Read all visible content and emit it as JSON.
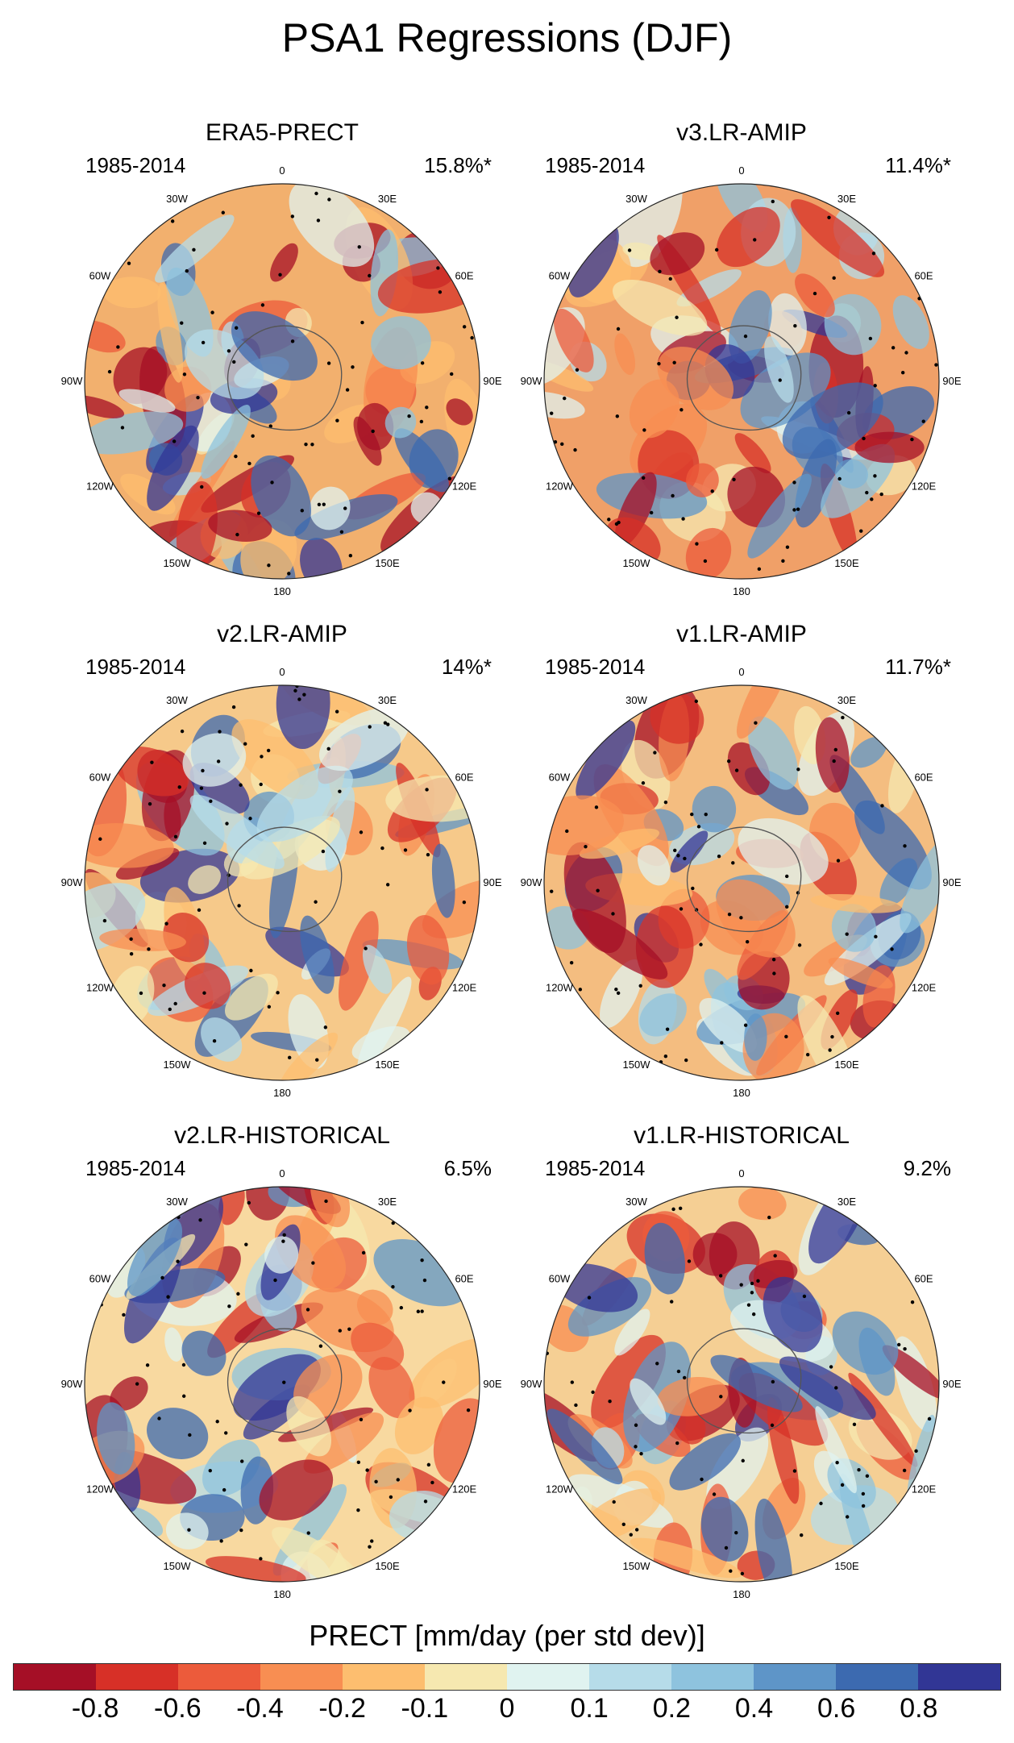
{
  "title": "PSA1 Regressions (DJF)",
  "panels": [
    {
      "title": "ERA5-PRECT",
      "years": "1985-2014",
      "percent": "15.8%*",
      "tint": "#f2b06e",
      "icons": [
        "polar-map-icon"
      ]
    },
    {
      "title": "v3.LR-AMIP",
      "years": "1985-2014",
      "percent": "11.4%*",
      "tint": "#f0a068",
      "icons": [
        "polar-map-icon"
      ]
    },
    {
      "title": "v2.LR-AMIP",
      "years": "1985-2014",
      "percent": "14%*",
      "tint": "#f6c98a",
      "icons": [
        "polar-map-icon"
      ]
    },
    {
      "title": "v1.LR-AMIP",
      "years": "1985-2014",
      "percent": "11.7%*",
      "tint": "#f4bd80",
      "icons": [
        "polar-map-icon"
      ]
    },
    {
      "title": "v2.LR-HISTORICAL",
      "years": "1985-2014",
      "percent": "6.5%",
      "tint": "#f8d9a0",
      "icons": [
        "polar-map-icon"
      ]
    },
    {
      "title": "v1.LR-HISTORICAL",
      "years": "1985-2014",
      "percent": "9.2%",
      "tint": "#f5cf94",
      "icons": [
        "polar-map-icon"
      ]
    }
  ],
  "longitude_labels": [
    "0",
    "30E",
    "60E",
    "90E",
    "120E",
    "150E",
    "180",
    "150W",
    "120W",
    "90W",
    "60W",
    "30W"
  ],
  "colorbar": {
    "title": "PRECT [mm/day (per std dev)]",
    "colors": [
      "#a50f26",
      "#d73027",
      "#ec5b3b",
      "#f88e52",
      "#fdbe6f",
      "#f6e8b0",
      "#e0f3f0",
      "#b6dce9",
      "#8ec3de",
      "#5e95c8",
      "#3c6ab0",
      "#313695"
    ],
    "ticks": [
      "-0.8",
      "-0.6",
      "-0.4",
      "-0.2",
      "-0.1",
      "0",
      "0.1",
      "0.2",
      "0.4",
      "0.6",
      "0.8"
    ]
  }
}
